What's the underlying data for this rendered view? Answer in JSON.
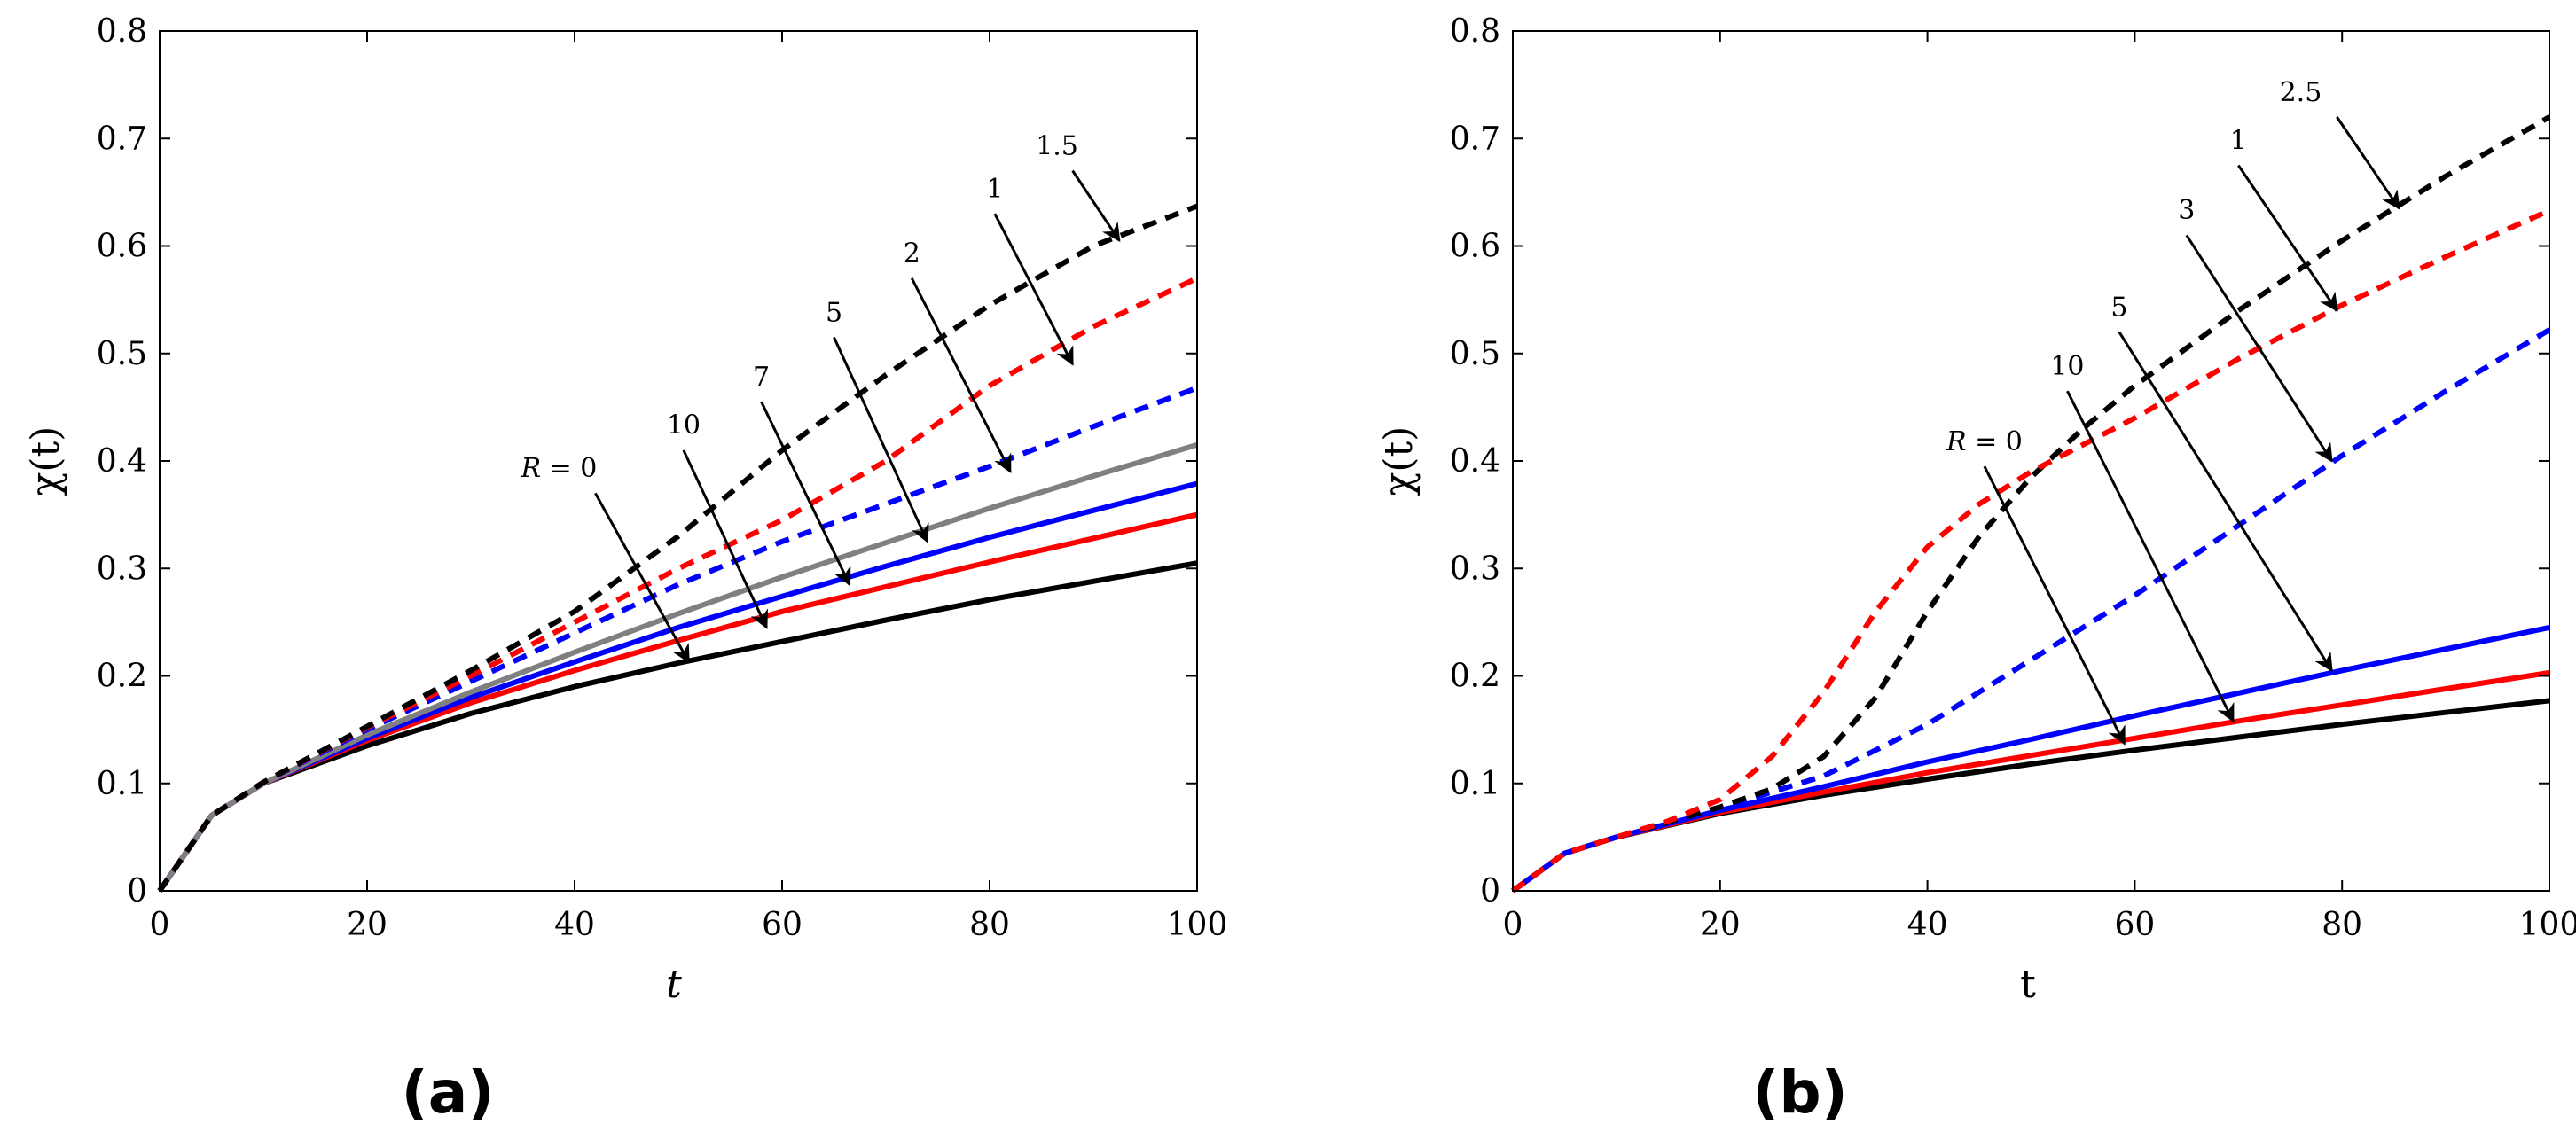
{
  "chart_data": [
    {
      "type": "line",
      "panel_label": "(a)",
      "xlabel": "t",
      "ylabel": "χ(t)",
      "xlim": [
        0,
        100
      ],
      "ylim": [
        0,
        0.8
      ],
      "xticks": [
        "0",
        "20",
        "40",
        "60",
        "80",
        "100"
      ],
      "yticks": [
        "0",
        "0.1",
        "0.2",
        "0.3",
        "0.4",
        "0.5",
        "0.6",
        "0.7",
        "0.8"
      ],
      "series": [
        {
          "name": "R = 0",
          "color": "#000000",
          "dashed": false,
          "x": [
            0,
            5,
            10,
            20,
            30,
            40,
            50,
            60,
            70,
            80,
            90,
            100
          ],
          "y": [
            0,
            0.07,
            0.1,
            0.135,
            0.165,
            0.19,
            0.212,
            0.232,
            0.252,
            0.271,
            0.288,
            0.305
          ]
        },
        {
          "name": "10",
          "color": "#ff0000",
          "dashed": false,
          "x": [
            0,
            5,
            10,
            20,
            30,
            40,
            50,
            60,
            70,
            80,
            90,
            100
          ],
          "y": [
            0,
            0.07,
            0.1,
            0.14,
            0.175,
            0.205,
            0.233,
            0.26,
            0.283,
            0.306,
            0.328,
            0.35
          ]
        },
        {
          "name": "7",
          "color": "#0000ff",
          "dashed": false,
          "x": [
            0,
            5,
            10,
            20,
            30,
            40,
            50,
            60,
            70,
            80,
            90,
            100
          ],
          "y": [
            0,
            0.07,
            0.1,
            0.142,
            0.18,
            0.213,
            0.245,
            0.274,
            0.302,
            0.329,
            0.354,
            0.379
          ]
        },
        {
          "name": "5",
          "color": "#808080",
          "dashed": false,
          "x": [
            0,
            5,
            10,
            20,
            30,
            40,
            50,
            60,
            70,
            80,
            90,
            100
          ],
          "y": [
            0,
            0.07,
            0.1,
            0.145,
            0.185,
            0.222,
            0.258,
            0.292,
            0.324,
            0.356,
            0.386,
            0.415
          ]
        },
        {
          "name": "2",
          "color": "#0000ff",
          "dashed": true,
          "x": [
            0,
            5,
            10,
            20,
            30,
            40,
            50,
            60,
            70,
            80,
            90,
            100
          ],
          "y": [
            0,
            0.07,
            0.101,
            0.15,
            0.195,
            0.24,
            0.285,
            0.325,
            0.36,
            0.395,
            0.432,
            0.468
          ]
        },
        {
          "name": "1",
          "color": "#ff0000",
          "dashed": true,
          "x": [
            0,
            5,
            10,
            20,
            30,
            40,
            50,
            60,
            70,
            80,
            90,
            100
          ],
          "y": [
            0,
            0.07,
            0.101,
            0.152,
            0.2,
            0.25,
            0.3,
            0.345,
            0.4,
            0.47,
            0.525,
            0.57
          ]
        },
        {
          "name": "1.5",
          "color": "#000000",
          "dashed": true,
          "x": [
            0,
            5,
            10,
            20,
            30,
            40,
            50,
            60,
            70,
            80,
            90,
            100
          ],
          "y": [
            0,
            0.07,
            0.101,
            0.153,
            0.205,
            0.26,
            0.33,
            0.41,
            0.48,
            0.545,
            0.6,
            0.637
          ]
        }
      ],
      "annotations": [
        {
          "text": "R = 0",
          "italic_r": true,
          "tx": 38.5,
          "ty": 0.385,
          "x0": 42,
          "y0": 0.37,
          "x1": 51,
          "y1": 0.213
        },
        {
          "text": "10",
          "tx": 50.5,
          "ty": 0.425,
          "x0": 50.5,
          "y0": 0.41,
          "x1": 58.5,
          "y1": 0.245
        },
        {
          "text": "7",
          "tx": 58,
          "ty": 0.47,
          "x0": 58,
          "y0": 0.455,
          "x1": 66.5,
          "y1": 0.285
        },
        {
          "text": "5",
          "tx": 65,
          "ty": 0.53,
          "x0": 65,
          "y0": 0.515,
          "x1": 74,
          "y1": 0.325
        },
        {
          "text": "2",
          "tx": 72.5,
          "ty": 0.585,
          "x0": 72.5,
          "y0": 0.57,
          "x1": 82,
          "y1": 0.39
        },
        {
          "text": "1",
          "tx": 80.5,
          "ty": 0.645,
          "x0": 80.5,
          "y0": 0.63,
          "x1": 88,
          "y1": 0.49
        },
        {
          "text": "1.5",
          "tx": 86.5,
          "ty": 0.685,
          "x0": 88,
          "y0": 0.67,
          "x1": 92.5,
          "y1": 0.605
        }
      ]
    },
    {
      "type": "line",
      "panel_label": "(b)",
      "xlabel": "t",
      "ylabel": "χ(t)",
      "xlim": [
        0,
        100
      ],
      "ylim": [
        0,
        0.8
      ],
      "xticks": [
        "0",
        "20",
        "40",
        "60",
        "80",
        "100"
      ],
      "yticks": [
        "0",
        "0.1",
        "0.2",
        "0.3",
        "0.4",
        "0.5",
        "0.6",
        "0.7",
        "0.8"
      ],
      "series": [
        {
          "name": "R = 0",
          "color": "#000000",
          "dashed": false,
          "x": [
            0,
            5,
            10,
            20,
            30,
            40,
            50,
            60,
            70,
            80,
            90,
            100
          ],
          "y": [
            0,
            0.035,
            0.05,
            0.072,
            0.089,
            0.104,
            0.118,
            0.131,
            0.143,
            0.155,
            0.166,
            0.177
          ]
        },
        {
          "name": "10",
          "color": "#ff0000",
          "dashed": false,
          "x": [
            0,
            5,
            10,
            20,
            30,
            40,
            50,
            60,
            70,
            80,
            90,
            100
          ],
          "y": [
            0,
            0.035,
            0.05,
            0.073,
            0.092,
            0.11,
            0.126,
            0.142,
            0.158,
            0.173,
            0.188,
            0.203
          ]
        },
        {
          "name": "5",
          "color": "#0000ff",
          "dashed": false,
          "x": [
            0,
            5,
            10,
            20,
            30,
            40,
            50,
            60,
            70,
            80,
            90,
            100
          ],
          "y": [
            0,
            0.035,
            0.05,
            0.075,
            0.097,
            0.12,
            0.141,
            0.163,
            0.184,
            0.205,
            0.225,
            0.245
          ]
        },
        {
          "name": "3",
          "color": "#0000ff",
          "dashed": true,
          "x": [
            0,
            5,
            10,
            20,
            30,
            40,
            50,
            60,
            70,
            80,
            90,
            100
          ],
          "y": [
            0,
            0.035,
            0.05,
            0.077,
            0.107,
            0.155,
            0.215,
            0.275,
            0.34,
            0.405,
            0.465,
            0.522
          ]
        },
        {
          "name": "2.5",
          "color": "#000000",
          "dashed": true,
          "x": [
            0,
            5,
            10,
            20,
            25,
            30,
            35,
            40,
            45,
            50,
            55,
            60,
            70,
            80,
            90,
            100
          ],
          "y": [
            0,
            0.035,
            0.05,
            0.078,
            0.095,
            0.125,
            0.18,
            0.26,
            0.33,
            0.385,
            0.43,
            0.47,
            0.54,
            0.605,
            0.665,
            0.72
          ]
        },
        {
          "name": "1",
          "color": "#ff0000",
          "dashed": true,
          "x": [
            0,
            5,
            10,
            15,
            20,
            25,
            30,
            35,
            40,
            45,
            50,
            55,
            60,
            70,
            80,
            90,
            100
          ],
          "y": [
            0,
            0.035,
            0.05,
            0.065,
            0.085,
            0.125,
            0.185,
            0.26,
            0.32,
            0.36,
            0.39,
            0.415,
            0.44,
            0.495,
            0.545,
            0.59,
            0.633
          ]
        }
      ],
      "annotations": [
        {
          "text": "R = 0",
          "italic_r": true,
          "tx": 45.5,
          "ty": 0.41,
          "x0": 45.5,
          "y0": 0.395,
          "x1": 59,
          "y1": 0.137
        },
        {
          "text": "10",
          "tx": 53.5,
          "ty": 0.48,
          "x0": 53.5,
          "y0": 0.465,
          "x1": 69.5,
          "y1": 0.158
        },
        {
          "text": "5",
          "tx": 58.5,
          "ty": 0.535,
          "x0": 58.5,
          "y0": 0.52,
          "x1": 79,
          "y1": 0.205
        },
        {
          "text": "3",
          "tx": 65,
          "ty": 0.625,
          "x0": 65,
          "y0": 0.61,
          "x1": 79,
          "y1": 0.4
        },
        {
          "text": "1",
          "tx": 70,
          "ty": 0.69,
          "x0": 70,
          "y0": 0.675,
          "x1": 79.5,
          "y1": 0.54
        },
        {
          "text": "2.5",
          "tx": 76,
          "ty": 0.735,
          "x0": 79.5,
          "y0": 0.72,
          "x1": 85.5,
          "y1": 0.635
        }
      ]
    }
  ]
}
